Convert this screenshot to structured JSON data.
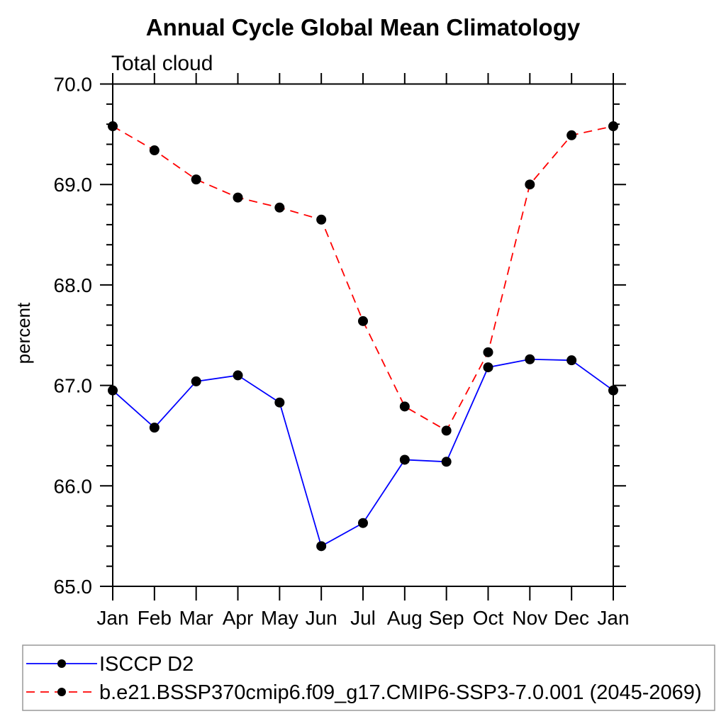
{
  "chart_data": {
    "type": "line",
    "title": "Annual Cycle Global Mean Climatology",
    "subtitle": "Total cloud",
    "xlabel": "",
    "ylabel": "percent",
    "categories": [
      "Jan",
      "Feb",
      "Mar",
      "Apr",
      "May",
      "Jun",
      "Jul",
      "Aug",
      "Sep",
      "Oct",
      "Nov",
      "Dec",
      "Jan"
    ],
    "series": [
      {
        "name": "ISCCP D2",
        "color": "#0000ff",
        "line_style": "solid",
        "marker": "black-filled-circle",
        "values": [
          66.95,
          66.58,
          67.04,
          67.1,
          66.83,
          65.4,
          65.63,
          66.26,
          66.24,
          67.18,
          67.26,
          67.25,
          66.95
        ]
      },
      {
        "name": "b.e21.BSSP370cmip6.f09_g17.CMIP6-SSP3-7.0.001 (2045-2069)",
        "color": "#ff0000",
        "line_style": "dashed",
        "marker": "black-filled-circle",
        "values": [
          69.58,
          69.34,
          69.05,
          68.87,
          68.77,
          68.65,
          67.64,
          66.79,
          66.55,
          67.33,
          69.0,
          69.49,
          69.58
        ]
      }
    ],
    "ylim": [
      65.0,
      70.0
    ],
    "ytick_labels": [
      "65.0",
      "66.0",
      "67.0",
      "68.0",
      "69.0",
      "70.0"
    ],
    "ytick_interval": 1.0,
    "yminor_interval": 0.2,
    "grid": "off",
    "tick_direction": "outward",
    "legend_position": "bottom-left-box",
    "axis_color": "#000000",
    "legend_border_color": "#999999",
    "marker_color": "#000000"
  }
}
